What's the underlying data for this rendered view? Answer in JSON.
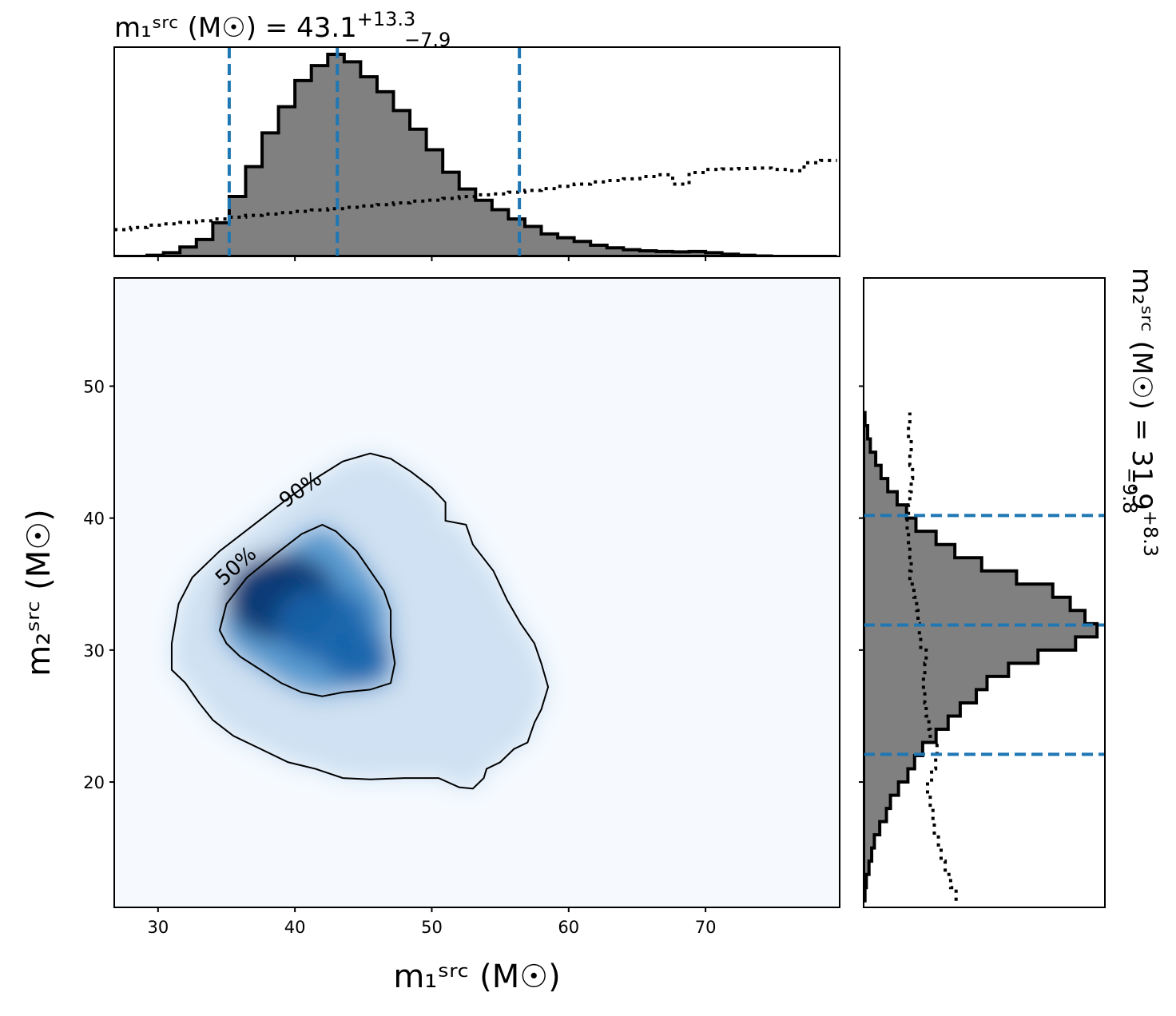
{
  "chart_data": {
    "type": "corner",
    "panels": [
      {
        "name": "m1 marginal",
        "type": "histogram",
        "title_prefix": "m₁ˢʳᶜ (M☉) = ",
        "title_value": "43.1",
        "title_plus": "+13.3",
        "title_minus": "−7.9",
        "xlim": [
          26.8,
          79.8
        ],
        "bins": [
          26.8,
          28.0,
          29.2,
          30.4,
          31.6,
          32.8,
          34.0,
          35.2,
          36.4,
          37.6,
          38.8,
          40.0,
          41.2,
          42.4,
          43.6,
          44.8,
          46.0,
          47.2,
          48.4,
          49.6,
          50.8,
          52.0,
          53.2,
          54.4,
          55.6,
          56.8,
          58.0,
          59.2,
          60.4,
          61.6,
          62.8,
          64.0,
          65.2,
          66.4,
          67.6,
          68.8,
          70.0,
          71.2,
          72.4,
          73.6,
          74.8,
          76.0,
          77.2,
          78.4,
          79.6
        ],
        "posterior_counts": [
          0.0,
          0.0,
          0.3,
          1.0,
          2.5,
          4.5,
          9.0,
          16.0,
          24.0,
          33.0,
          40.0,
          47.0,
          51.0,
          54.0,
          52.0,
          48.0,
          44.0,
          39.0,
          34.0,
          28.5,
          22.5,
          18.0,
          15.0,
          12.5,
          10.0,
          8.0,
          6.0,
          5.0,
          4.0,
          3.0,
          2.3,
          1.8,
          1.5,
          1.3,
          1.2,
          1.3,
          1.0,
          0.6,
          0.3,
          0.1,
          0.0,
          0.0,
          0.0,
          0.0
        ],
        "prior_counts": [
          6.0,
          6.5,
          7.0,
          7.3,
          7.6,
          8.0,
          8.4,
          8.8,
          9.2,
          9.5,
          9.8,
          10.1,
          10.4,
          10.7,
          11.0,
          11.3,
          11.6,
          12.0,
          12.4,
          12.6,
          13.0,
          13.4,
          13.8,
          14.0,
          14.4,
          14.8,
          15.2,
          15.7,
          16.2,
          16.7,
          17.0,
          17.4,
          17.9,
          18.3,
          16.2,
          18.8,
          19.5,
          19.6,
          19.7,
          19.8,
          19.5,
          19.2,
          21.0,
          21.5
        ],
        "quantile_lines": [
          35.2,
          43.1,
          56.4
        ],
        "ticks": [
          30,
          40,
          50,
          60,
          70
        ]
      },
      {
        "name": "joint",
        "type": "heatmap",
        "xlabel": "m₁ˢʳᶜ (M☉)",
        "ylabel": "m₂ˢʳᶜ (M☉)",
        "xlim": [
          26.8,
          79.8
        ],
        "ylim": [
          10.5,
          58.2
        ],
        "xticks": [
          30,
          40,
          50,
          60,
          70
        ],
        "yticks": [
          20,
          30,
          40,
          50
        ],
        "contours": [
          {
            "label": "90%",
            "points": [
              [
                31.0,
                30.5
              ],
              [
                31.5,
                33.5
              ],
              [
                32.5,
                35.5
              ],
              [
                34.5,
                37.5
              ],
              [
                37.0,
                39.5
              ],
              [
                39.5,
                41.5
              ],
              [
                41.5,
                43.0
              ],
              [
                43.5,
                44.3
              ],
              [
                45.5,
                44.9
              ],
              [
                47.0,
                44.5
              ],
              [
                48.5,
                43.5
              ],
              [
                50.0,
                42.3
              ],
              [
                51.0,
                41.2
              ],
              [
                51.0,
                39.8
              ],
              [
                52.5,
                39.5
              ],
              [
                53.0,
                38.0
              ],
              [
                54.5,
                36.0
              ],
              [
                55.5,
                33.8
              ],
              [
                56.5,
                32.0
              ],
              [
                57.5,
                30.5
              ],
              [
                58.0,
                29.0
              ],
              [
                58.5,
                27.2
              ],
              [
                58.0,
                25.5
              ],
              [
                57.5,
                24.5
              ],
              [
                57.0,
                23.0
              ],
              [
                56.0,
                22.5
              ],
              [
                55.0,
                21.5
              ],
              [
                54.0,
                21.0
              ],
              [
                53.8,
                20.3
              ],
              [
                53.0,
                19.5
              ],
              [
                52.0,
                19.6
              ],
              [
                50.5,
                20.3
              ],
              [
                48.0,
                20.3
              ],
              [
                45.5,
                20.2
              ],
              [
                43.5,
                20.3
              ],
              [
                41.5,
                21.0
              ],
              [
                39.5,
                21.5
              ],
              [
                37.5,
                22.5
              ],
              [
                35.5,
                23.5
              ],
              [
                34.0,
                24.7
              ],
              [
                33.0,
                26.0
              ],
              [
                32.0,
                27.5
              ],
              [
                31.0,
                28.5
              ],
              [
                31.0,
                30.5
              ]
            ]
          },
          {
            "label": "50%",
            "points": [
              [
                34.5,
                31.5
              ],
              [
                35.0,
                33.5
              ],
              [
                36.5,
                35.5
              ],
              [
                38.5,
                37.2
              ],
              [
                40.5,
                38.8
              ],
              [
                42.0,
                39.5
              ],
              [
                43.0,
                39.0
              ],
              [
                44.5,
                37.5
              ],
              [
                45.5,
                36.0
              ],
              [
                46.5,
                34.5
              ],
              [
                47.0,
                33.0
              ],
              [
                47.0,
                31.0
              ],
              [
                47.3,
                29.0
              ],
              [
                47.0,
                27.5
              ],
              [
                45.5,
                27.0
              ],
              [
                43.5,
                26.8
              ],
              [
                42.0,
                26.5
              ],
              [
                40.5,
                26.8
              ],
              [
                39.0,
                27.5
              ],
              [
                37.5,
                28.5
              ],
              [
                36.0,
                29.5
              ],
              [
                35.0,
                30.5
              ],
              [
                34.5,
                31.5
              ]
            ]
          }
        ],
        "density_peaks": [
          {
            "x": 39.0,
            "y": 34.0,
            "w": 1.0
          },
          {
            "x": 42.0,
            "y": 32.0,
            "w": 0.85
          },
          {
            "x": 44.5,
            "y": 29.5,
            "w": 0.6
          }
        ]
      },
      {
        "name": "m2 marginal",
        "type": "histogram",
        "orientation": "horizontal",
        "title_prefix": "m₂ˢʳᶜ (M☉) = ",
        "title_value": "31.9",
        "title_plus": "+8.3",
        "title_minus": "−9.8",
        "ylim": [
          10.5,
          58.2
        ],
        "bins": [
          11.0,
          12.0,
          13.0,
          14.0,
          15.0,
          16.0,
          17.0,
          18.0,
          19.0,
          20.0,
          21.0,
          22.0,
          23.0,
          24.0,
          25.0,
          26.0,
          27.0,
          28.0,
          29.0,
          30.0,
          31.0,
          32.0,
          33.0,
          34.0,
          35.0,
          36.0,
          37.0,
          38.0,
          39.0,
          40.0,
          41.0,
          42.0,
          43.0,
          44.0,
          45.0,
          46.0,
          47.0,
          48.0
        ],
        "posterior_counts": [
          0.5,
          1.0,
          2.0,
          3.0,
          4.0,
          6.0,
          8.5,
          10.0,
          13.0,
          16.5,
          19.0,
          22.0,
          27.0,
          31.5,
          36.0,
          42.0,
          46.0,
          54.0,
          65.0,
          79.0,
          87.0,
          82.5,
          77.0,
          70.5,
          57.0,
          44.0,
          34.0,
          27.0,
          19.5,
          16.0,
          12.5,
          9.0,
          6.5,
          4.5,
          2.5,
          1.5,
          0.5
        ],
        "prior_counts": [
          34.0,
          32.0,
          30.0,
          28.5,
          27.5,
          26.0,
          25.5,
          24.5,
          23.5,
          25.0,
          26.5,
          27.0,
          24.5,
          24.0,
          23.0,
          22.5,
          22.0,
          22.5,
          23.0,
          21.0,
          20.5,
          20.0,
          19.5,
          18.5,
          17.0,
          17.5,
          17.0,
          16.5,
          16.0,
          16.5,
          17.0,
          17.5,
          18.0,
          17.0,
          17.5,
          16.5,
          17.0
        ],
        "quantile_lines": [
          22.1,
          31.9,
          40.2
        ],
        "yticks": [
          20,
          30,
          40,
          50
        ]
      }
    ]
  }
}
